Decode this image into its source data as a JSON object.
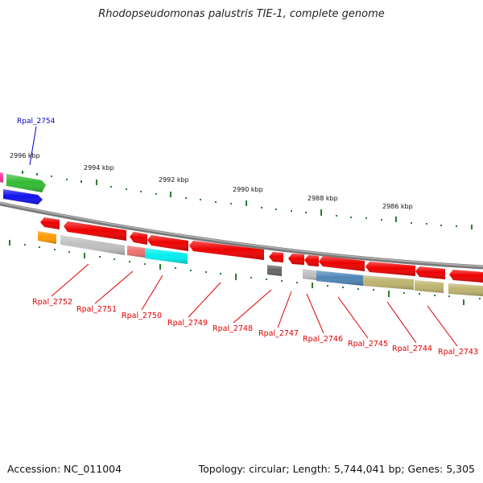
{
  "title": "Rhodopseudomonas palustris TIE-1, complete genome",
  "footer": {
    "accession": "Accession: NC_011004",
    "summary": "Topology: circular; Length: 5,744,041 bp; Genes: 5,305"
  },
  "ruler": {
    "labels": [
      "2996 kbp",
      "2994 kbp",
      "2992 kbp",
      "2990 kbp",
      "2988 kbp",
      "2986 kbp"
    ]
  },
  "gene_labels": {
    "top": [
      "Rpal_2754"
    ],
    "bottom": [
      "Rpal_2752",
      "Rpal_2751",
      "Rpal_2750",
      "Rpal_2749",
      "Rpal_2748",
      "Rpal_2747",
      "Rpal_2746",
      "Rpal_2745",
      "Rpal_2744",
      "Rpal_2743"
    ]
  },
  "colors": {
    "backbone": "#808080",
    "tick": "#2e7d32",
    "label_bottom": "#e00000",
    "label_top": "#0000cc",
    "red": "#ee0000",
    "grey": "#c0c0c0",
    "green": "#33bb33",
    "blue": "#1111ee",
    "orange": "#ff9900",
    "pink": "#ee7070",
    "cyan": "#00eeee",
    "steel": "#4f86b8",
    "olive": "#bdb46e",
    "dark_grey": "#666666"
  }
}
